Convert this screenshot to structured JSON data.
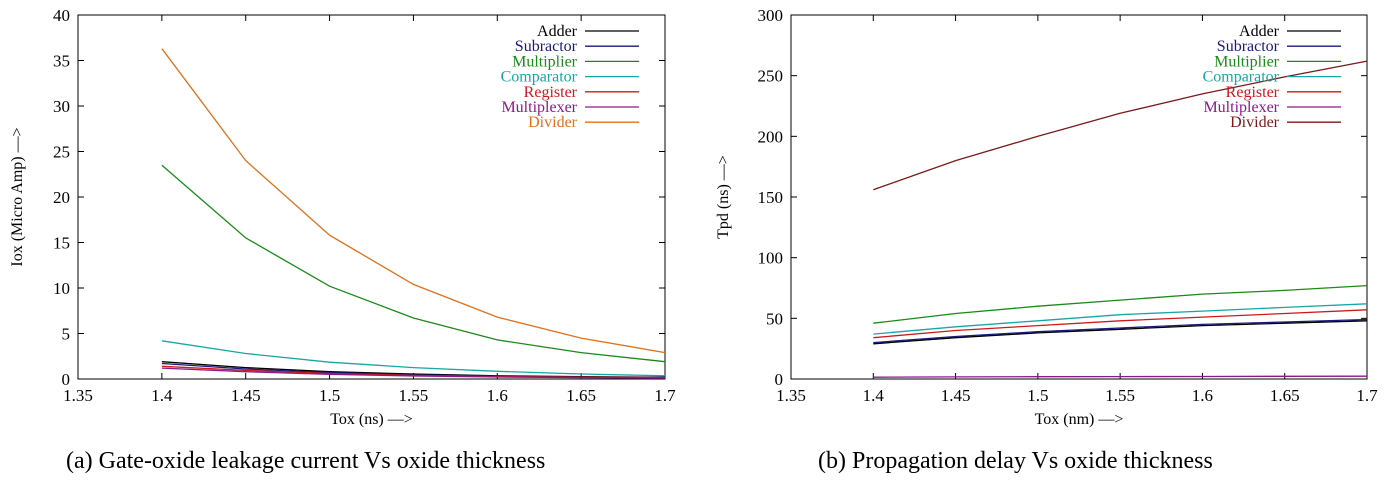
{
  "chart_data": [
    {
      "type": "line",
      "id": "a",
      "caption": "(a) Gate-oxide leakage current Vs oxide thickness",
      "xlabel": "Tox (ns) —>",
      "ylabel": "Iox (Micro Amp) —>",
      "xlim": [
        1.35,
        1.7
      ],
      "ylim": [
        0,
        40
      ],
      "xticks": [
        1.35,
        1.4,
        1.45,
        1.5,
        1.55,
        1.6,
        1.65,
        1.7
      ],
      "xtick_labels": [
        "1.35",
        "1.4",
        "1.45",
        "1.5",
        "1.55",
        "1.6",
        "1.65",
        "1.7"
      ],
      "yticks": [
        0,
        5,
        10,
        15,
        20,
        25,
        30,
        35,
        40
      ],
      "ytick_labels": [
        "0",
        "5",
        "10",
        "15",
        "20",
        "25",
        "30",
        "35",
        "40"
      ],
      "legend_position": "top-right",
      "x": [
        1.4,
        1.45,
        1.5,
        1.55,
        1.6,
        1.65,
        1.7
      ],
      "series": [
        {
          "name": "Adder",
          "color": "#000000",
          "values": [
            1.9,
            1.25,
            0.8,
            0.55,
            0.35,
            0.25,
            0.2
          ]
        },
        {
          "name": "Subractor",
          "color": "#1a1a7a",
          "values": [
            1.7,
            1.1,
            0.7,
            0.45,
            0.3,
            0.22,
            0.18
          ]
        },
        {
          "name": "Multiplier",
          "color": "#1a8a1a",
          "values": [
            23.5,
            15.5,
            10.2,
            6.7,
            4.3,
            2.9,
            1.9
          ]
        },
        {
          "name": "Comparator",
          "color": "#1aa5a5",
          "values": [
            4.2,
            2.8,
            1.85,
            1.25,
            0.85,
            0.55,
            0.35
          ]
        },
        {
          "name": "Register",
          "color": "#cc1a1a",
          "values": [
            1.4,
            0.95,
            0.6,
            0.4,
            0.27,
            0.2,
            0.15
          ]
        },
        {
          "name": "Multiplexer",
          "color": "#8a1a8a",
          "values": [
            1.2,
            0.8,
            0.5,
            0.33,
            0.22,
            0.15,
            0.1
          ]
        },
        {
          "name": "Divider",
          "color": "#e0701a",
          "values": [
            36.3,
            24.0,
            15.8,
            10.4,
            6.8,
            4.5,
            2.9
          ]
        }
      ]
    },
    {
      "type": "line",
      "id": "b",
      "caption": "(b) Propagation delay Vs oxide thickness",
      "xlabel": "Tox (nm) —>",
      "ylabel": "Tpd (ns) —>",
      "xlim": [
        1.35,
        1.7
      ],
      "ylim": [
        0,
        300
      ],
      "xticks": [
        1.35,
        1.4,
        1.45,
        1.5,
        1.55,
        1.6,
        1.65,
        1.7
      ],
      "xtick_labels": [
        "1.35",
        "1.4",
        "1.45",
        "1.5",
        "1.55",
        "1.6",
        "1.65",
        "1.7"
      ],
      "yticks": [
        0,
        50,
        100,
        150,
        200,
        250,
        300
      ],
      "ytick_labels": [
        "0",
        "50",
        "100",
        "150",
        "200",
        "250",
        "300"
      ],
      "legend_position": "top-right",
      "x": [
        1.4,
        1.45,
        1.5,
        1.55,
        1.6,
        1.65,
        1.7
      ],
      "series": [
        {
          "name": "Adder",
          "color": "#000000",
          "values": [
            29,
            34,
            38,
            41,
            44,
            46,
            48
          ]
        },
        {
          "name": "Subractor",
          "color": "#1a1a7a",
          "values": [
            30,
            35,
            39,
            42,
            45,
            47,
            49
          ]
        },
        {
          "name": "Multiplier",
          "color": "#1a8a1a",
          "values": [
            46,
            54,
            60,
            65,
            70,
            73,
            77
          ]
        },
        {
          "name": "Comparator",
          "color": "#1aa5a5",
          "values": [
            37,
            43,
            48,
            53,
            56,
            59,
            62
          ]
        },
        {
          "name": "Register",
          "color": "#cc1a1a",
          "values": [
            34,
            40,
            44,
            48,
            51,
            54,
            57
          ]
        },
        {
          "name": "Multiplexer",
          "color": "#8a1a8a",
          "values": [
            1.5,
            1.7,
            1.9,
            2.0,
            2.1,
            2.2,
            2.3
          ]
        },
        {
          "name": "Divider",
          "color": "#7a1a1a",
          "values": [
            156,
            180,
            200,
            219,
            235,
            249,
            262
          ]
        }
      ]
    }
  ]
}
